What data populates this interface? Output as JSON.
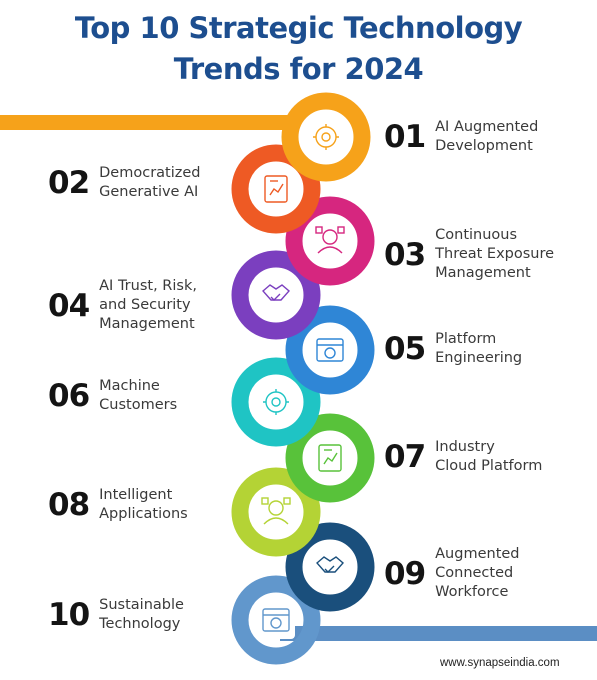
{
  "title": {
    "line1": "Top 10 Strategic Technology",
    "line2": "Trends for 2024"
  },
  "trends": [
    {
      "number": "01",
      "label": "AI Augmented\nDevelopment",
      "color": "#f6a21a",
      "icon": "gear-code-icon"
    },
    {
      "number": "02",
      "label": "Democratized\nGenerative AI",
      "color": "#ee5a24",
      "icon": "document-chart-icon"
    },
    {
      "number": "03",
      "label": "Continuous\nThreat Exposure\nManagement",
      "color": "#d6267f",
      "icon": "hacker-icon"
    },
    {
      "number": "04",
      "label": "AI Trust, Risk,\nand Security\nManagement",
      "color": "#7b3fbf",
      "icon": "handshake-shield-icon"
    },
    {
      "number": "05",
      "label": "Platform\nEngineering",
      "color": "#2f86d6",
      "icon": "browser-gear-icon"
    },
    {
      "number": "06",
      "label": "Machine\nCustomers",
      "color": "#1fc4c4",
      "icon": "brain-circuit-icon"
    },
    {
      "number": "07",
      "label": "Industry\nCloud Platform",
      "color": "#58c23a",
      "icon": "cloud-gear-icon"
    },
    {
      "number": "08",
      "label": "Intelligent\nApplications",
      "color": "#b4d335",
      "icon": "phone-chart-icon"
    },
    {
      "number": "09",
      "label": "Augmented\nConnected\nWorkforce",
      "color": "#1a4f7c",
      "icon": "team-gears-icon"
    },
    {
      "number": "10",
      "label": "Sustainable\nTechnology",
      "color": "#6197cc",
      "icon": "hand-globe-icon"
    }
  ],
  "footer": "www.synapseindia.com"
}
